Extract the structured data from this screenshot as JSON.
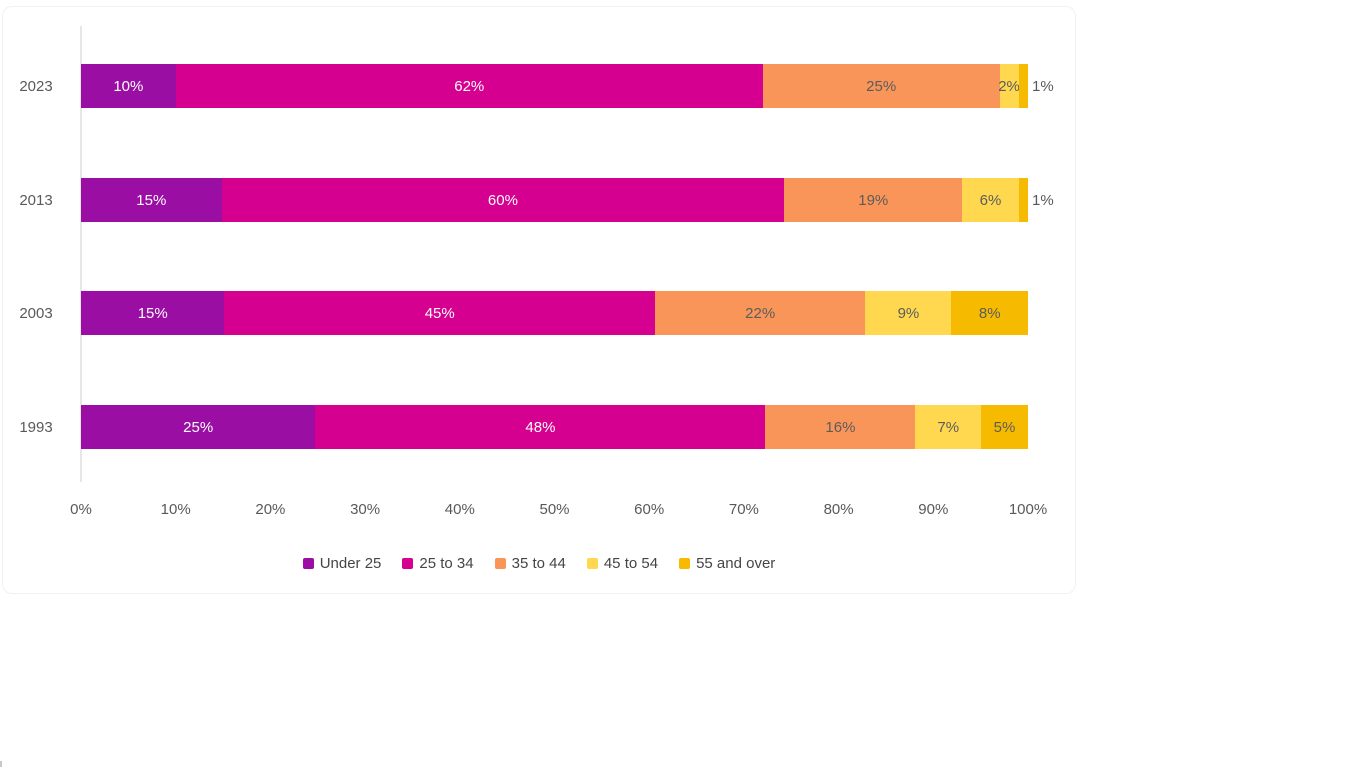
{
  "page": {
    "background": "#ffffff",
    "axis_line_color": "#e7e7e7",
    "text_color": "#595959"
  },
  "chart_data": {
    "type": "bar",
    "variant": "horizontal-stacked-100pct",
    "title": "",
    "xlabel": "",
    "ylabel": "",
    "grid": false,
    "legend_position": "bottom",
    "categories": [
      "2023",
      "2013",
      "2003",
      "1993"
    ],
    "series": [
      {
        "name": "Under 25",
        "color": "#9A0EA4",
        "label_color": "#ffffff",
        "values": [
          10,
          15,
          15,
          25
        ]
      },
      {
        "name": "25 to 34",
        "color": "#D60090",
        "label_color": "#ffffff",
        "values": [
          62,
          60,
          45,
          48
        ]
      },
      {
        "name": "35 to 44",
        "color": "#F99559",
        "label_color": "#5c5c5c",
        "values": [
          25,
          19,
          22,
          16
        ]
      },
      {
        "name": "45 to 54",
        "color": "#FFD84F",
        "label_color": "#5c5c5c",
        "values": [
          2,
          6,
          9,
          7
        ]
      },
      {
        "name": "55 and over",
        "color": "#F6BB00",
        "label_color": "#5c5c5c",
        "values": [
          1,
          1,
          8,
          5
        ]
      }
    ],
    "data_label_format": "percent",
    "data_labels": [
      [
        "10%",
        "62%",
        "25%",
        "2%",
        "1%"
      ],
      [
        "15%",
        "60%",
        "19%",
        "6%",
        "1%"
      ],
      [
        "15%",
        "45%",
        "22%",
        "9%",
        "8%"
      ],
      [
        "25%",
        "48%",
        "16%",
        "7%",
        "5%"
      ]
    ],
    "outside_label_max": 1,
    "x_ticks": [
      "0%",
      "10%",
      "20%",
      "30%",
      "40%",
      "50%",
      "60%",
      "70%",
      "80%",
      "90%",
      "100%"
    ],
    "x_range": [
      0,
      100
    ]
  }
}
